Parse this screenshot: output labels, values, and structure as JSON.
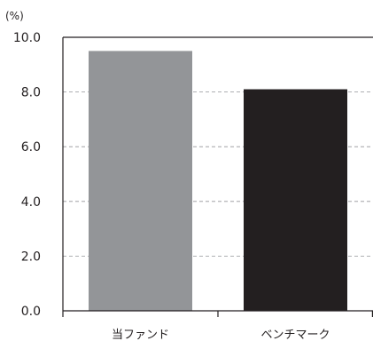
{
  "chart_data": {
    "type": "bar",
    "unit_label": "(%)",
    "categories": [
      "当ファンド",
      "ベンチマーク"
    ],
    "values": [
      9.5,
      8.1
    ],
    "bar_colors": [
      "#939598",
      "#231f20"
    ],
    "ylim": [
      0,
      10
    ],
    "y_ticks": [
      "0.0",
      "2.0",
      "4.0",
      "6.0",
      "8.0",
      "10.0"
    ],
    "grid": "dashed horizontal",
    "legend": "none"
  }
}
